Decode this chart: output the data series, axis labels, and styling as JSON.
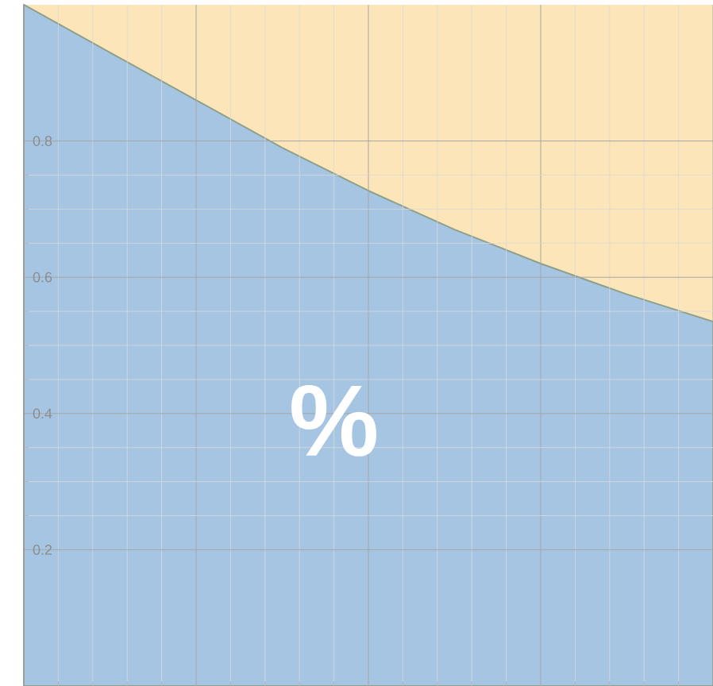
{
  "chart_data": {
    "type": "area",
    "stacked": true,
    "categories": [
      null,
      null,
      null,
      null,
      null,
      null,
      null,
      null,
      null
    ],
    "series": [
      {
        "color": "#a6c5e3",
        "values": [
          1.0,
          0.93,
          0.86,
          0.79,
          0.727,
          0.67,
          0.62,
          0.575,
          0.535
        ]
      },
      {
        "color": "#fce5b8",
        "values": [
          0.0,
          0.07,
          0.14,
          0.21,
          0.273,
          0.33,
          0.38,
          0.425,
          0.465
        ]
      }
    ],
    "ylim": [
      0,
      1
    ],
    "yticks": [
      0.2,
      0.4,
      0.6,
      0.8
    ],
    "grid": true,
    "tick_labels": "y",
    "annotations": [
      "%"
    ]
  }
}
